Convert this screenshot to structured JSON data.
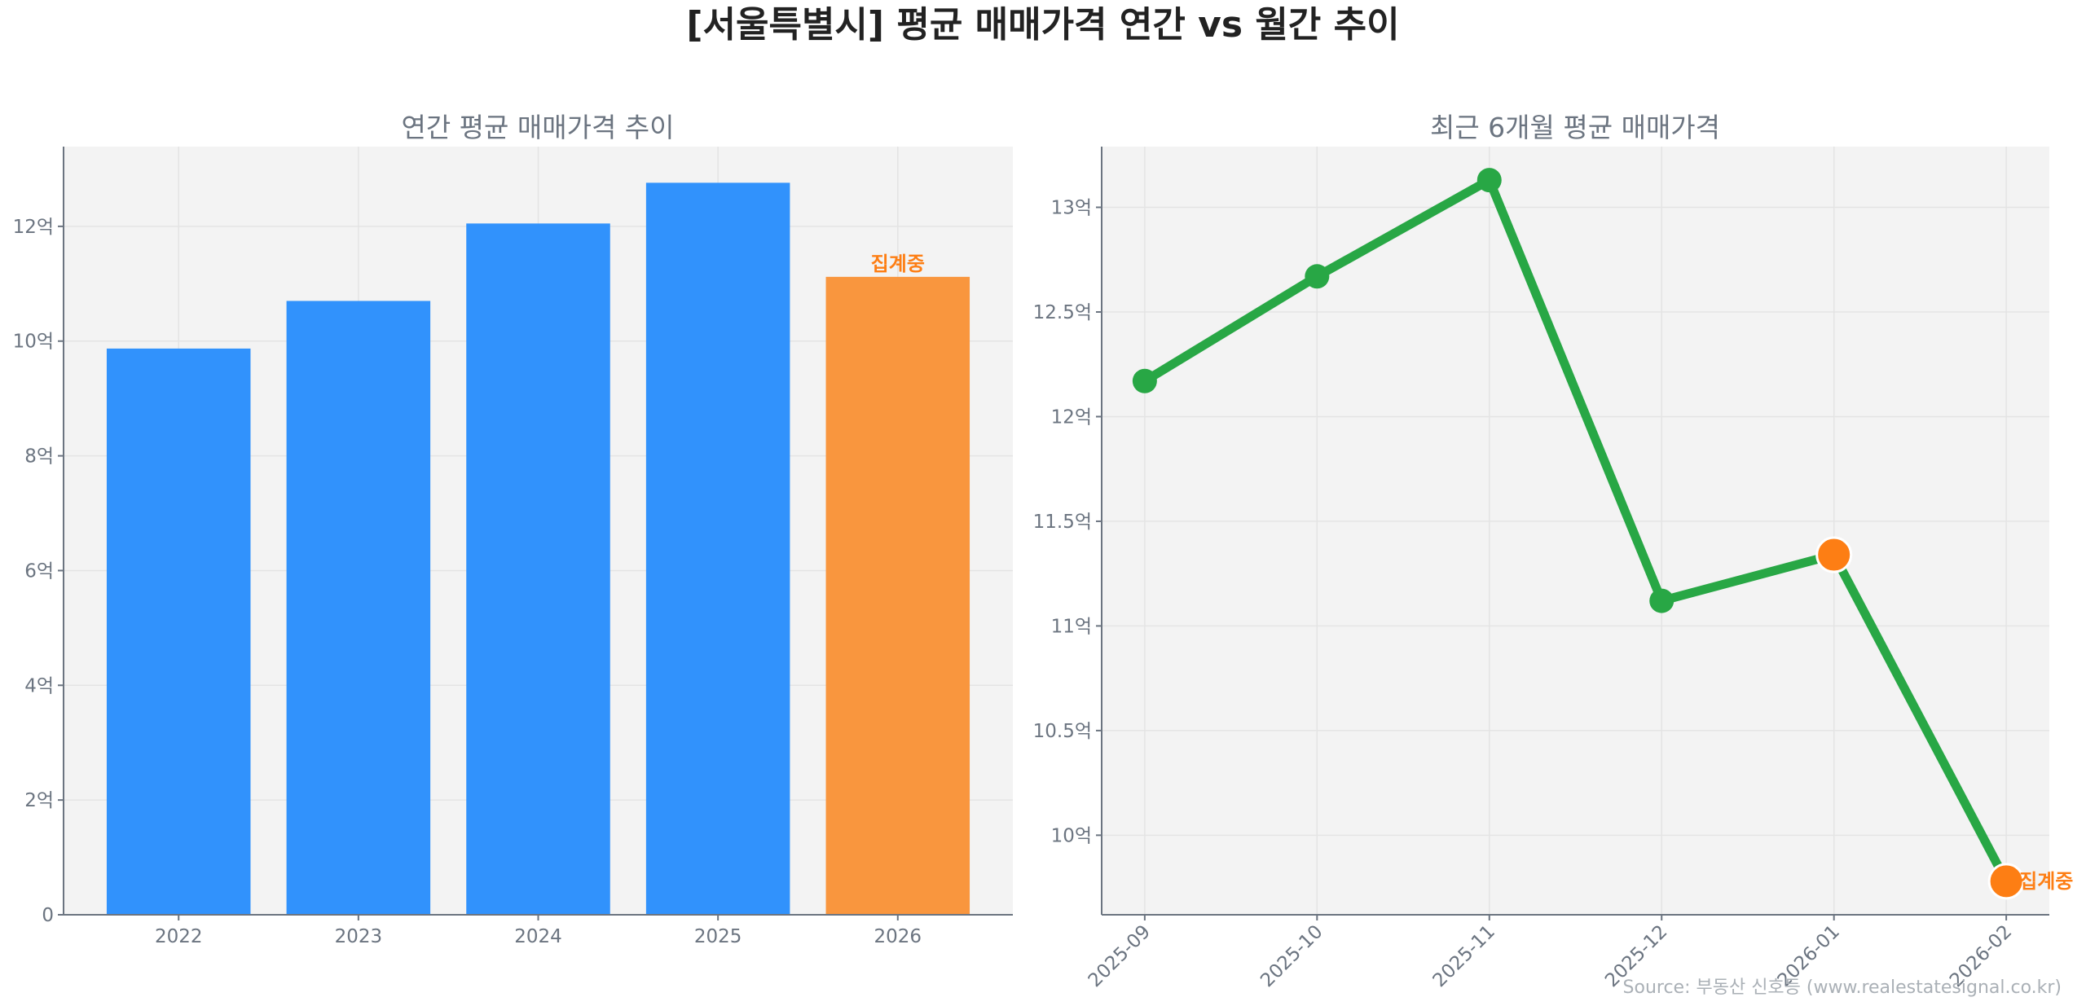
{
  "title": "[서울특별시] 평균 매매가격 연간 vs 월간 추이",
  "source": "Source: 부동산 신호등 (www.realestatesignal.co.kr)",
  "colors": {
    "bar": "#3192fc",
    "bar_partial": "#f9963e",
    "line": "#28a745",
    "marker_partial": "#fd7e14",
    "annotation": "#fd7e14",
    "plot_bg": "#f3f3f3"
  },
  "chart_data": [
    {
      "type": "bar",
      "title": "연간 평균 매매가격 추이",
      "categories": [
        "2022",
        "2023",
        "2024",
        "2025",
        "2026"
      ],
      "values": [
        9.87,
        10.7,
        12.05,
        12.76,
        11.12
      ],
      "partial": [
        false,
        false,
        false,
        false,
        true
      ],
      "annotation": {
        "category": "2026",
        "text": "집계중"
      },
      "ylim": [
        0,
        13.39
      ],
      "yticks": [
        0,
        2,
        4,
        6,
        8,
        10,
        12
      ],
      "ytick_labels": [
        "0",
        "2억",
        "4억",
        "6억",
        "8억",
        "10억",
        "12억"
      ],
      "grid": true
    },
    {
      "type": "line",
      "title": "최근 6개월 평균 매매가격",
      "categories": [
        "2025-09",
        "2025-10",
        "2025-11",
        "2025-12",
        "2026-01",
        "2026-02"
      ],
      "values": [
        12.17,
        12.67,
        13.13,
        11.12,
        11.34,
        9.78
      ],
      "partial": [
        false,
        false,
        false,
        false,
        true,
        true
      ],
      "annotation": {
        "category": "2026-02",
        "text": "집계중"
      },
      "ylim": [
        9.62,
        13.29
      ],
      "yticks": [
        10,
        10.5,
        11,
        11.5,
        12,
        12.5,
        13
      ],
      "ytick_labels": [
        "10억",
        "10.5억",
        "11억",
        "11.5억",
        "12억",
        "12.5억",
        "13억"
      ],
      "grid": true
    }
  ]
}
